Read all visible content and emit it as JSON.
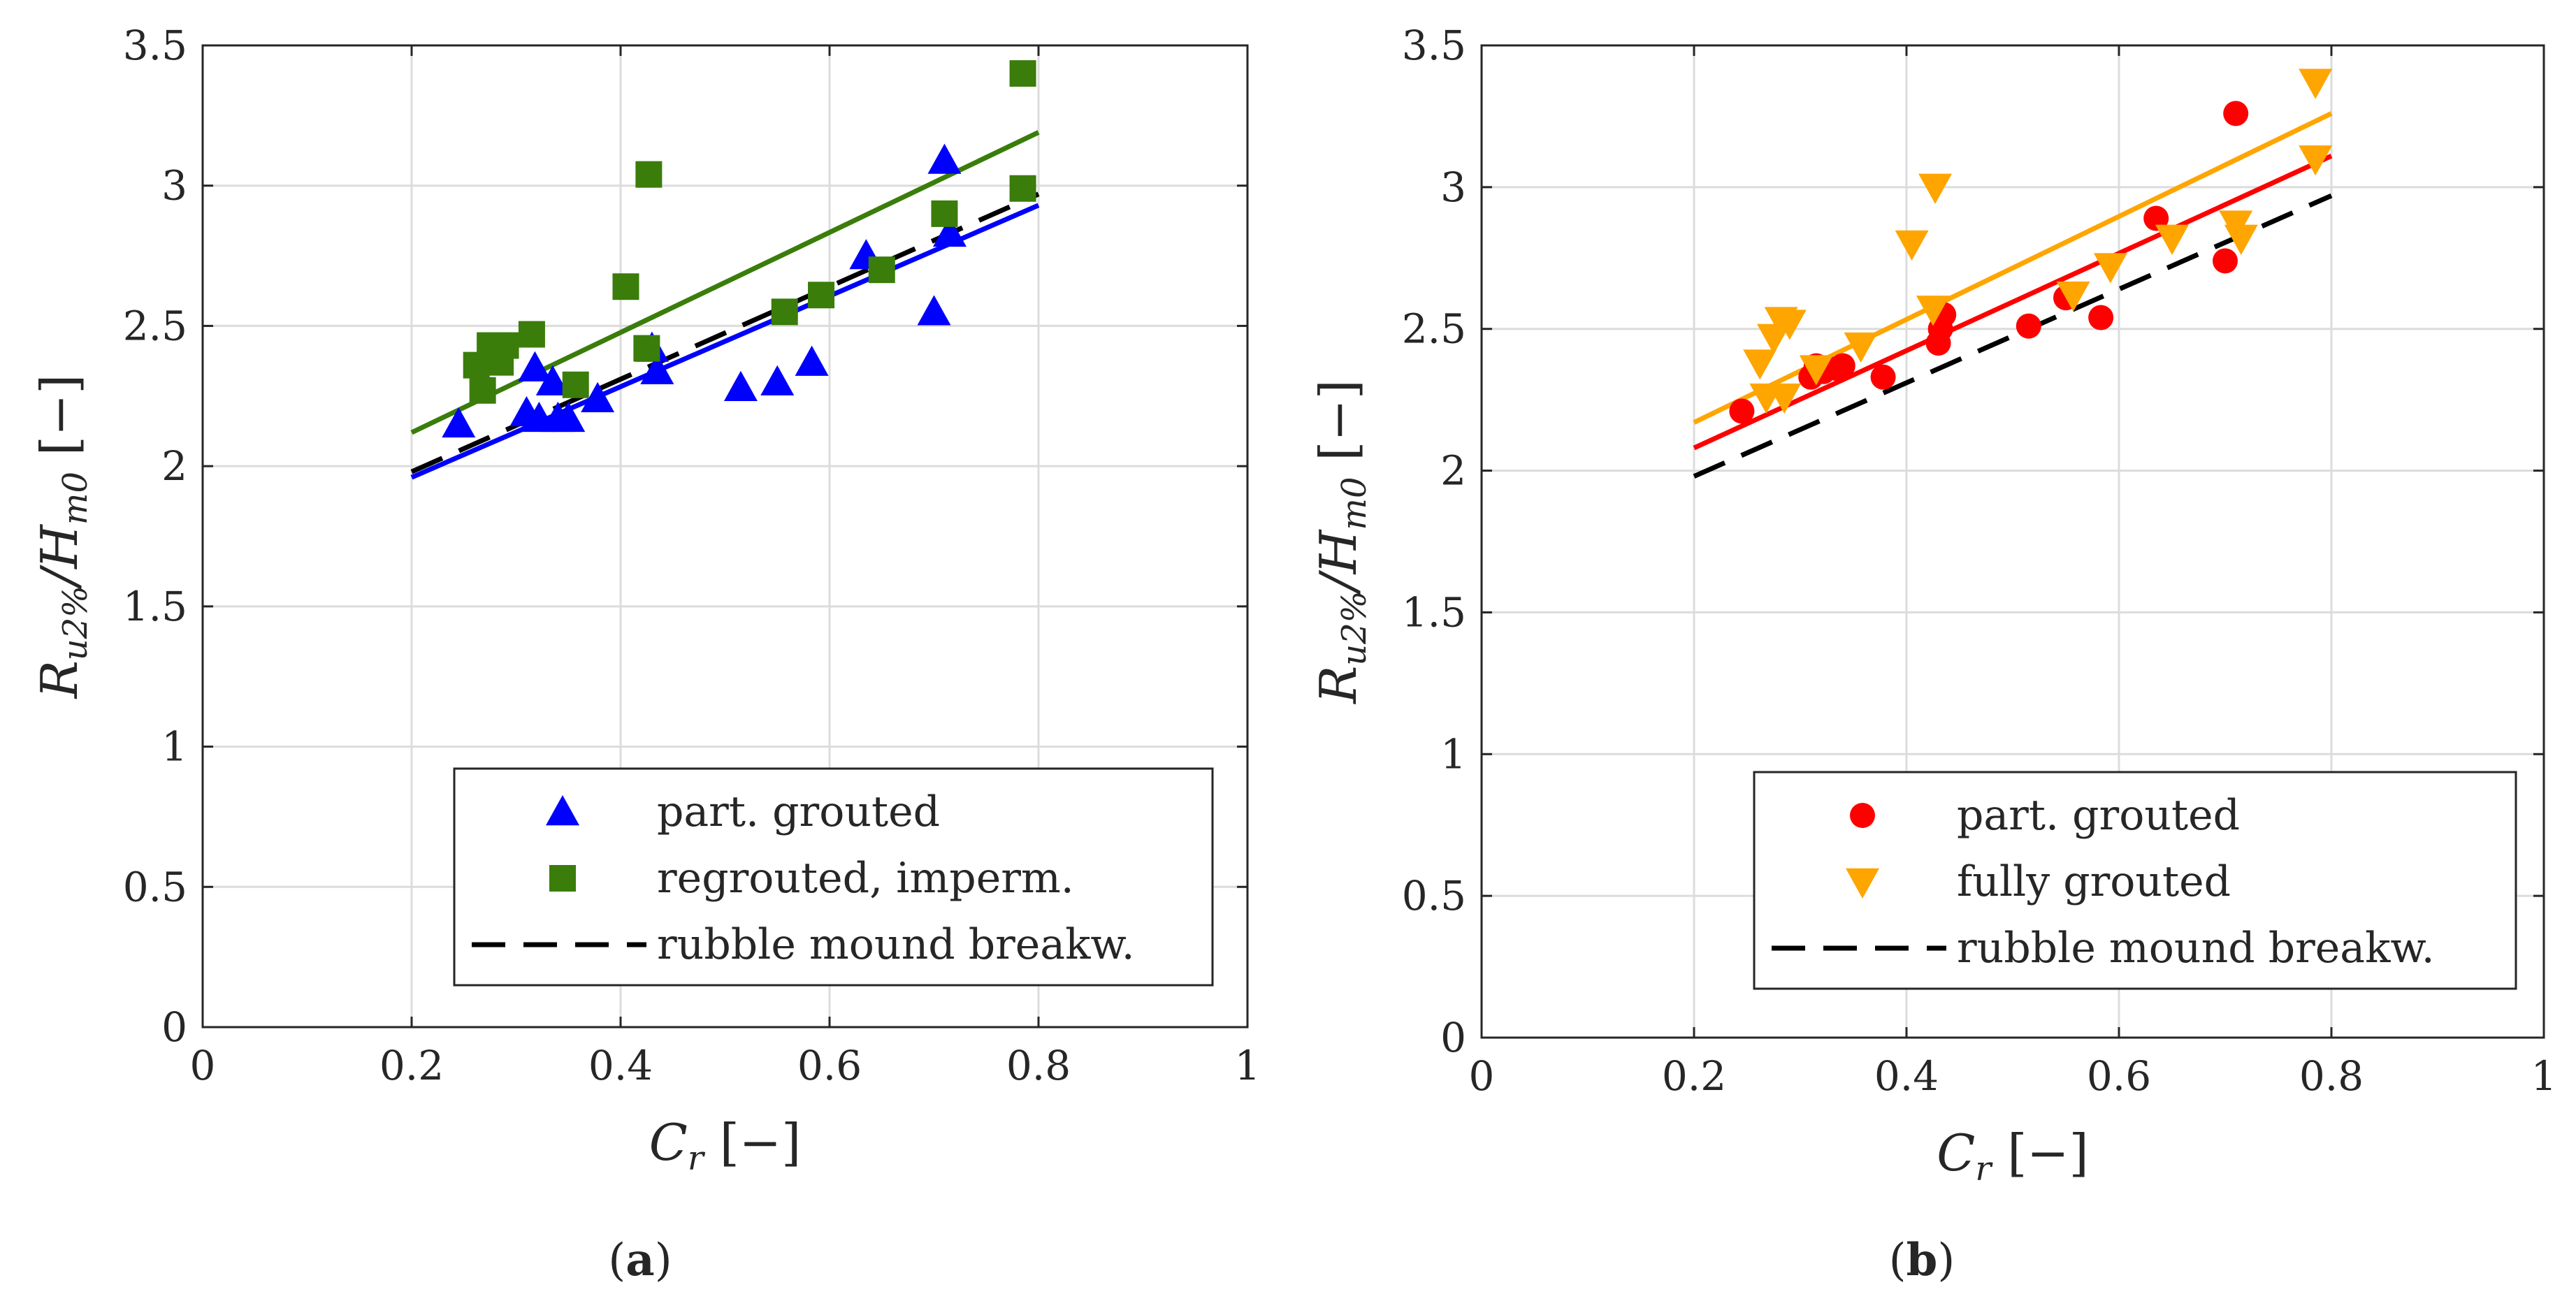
{
  "chart_data": [
    {
      "type": "scatter",
      "panel": "a",
      "caption": {
        "open": "(",
        "letter": "a",
        "close": ")"
      },
      "xlabel": {
        "main": "C",
        "sub": "r",
        "unit": "[−]"
      },
      "ylabel": {
        "main": "R",
        "sub": "u2%",
        "slash": "/",
        "main2": "H",
        "sub2": "m0",
        "unit": "[−]"
      },
      "xlim": [
        0,
        1
      ],
      "ylim": [
        0,
        3.5
      ],
      "xticks": [
        "0",
        "0.2",
        "0.4",
        "0.6",
        "0.8",
        "1"
      ],
      "xtick_values": [
        0,
        0.2,
        0.4,
        0.6,
        0.8,
        1
      ],
      "yticks": [
        "0",
        "0.5",
        "1",
        "1.5",
        "2",
        "2.5",
        "3",
        "3.5"
      ],
      "ytick_values": [
        0,
        0.5,
        1,
        1.5,
        2,
        2.5,
        3,
        3.5
      ],
      "grid": true,
      "legend_position": "bottom-right",
      "series": [
        {
          "name": "part. grouted",
          "marker": "triangle-up",
          "color": "#0000ff",
          "points": [
            [
              0.245,
              2.15
            ],
            [
              0.31,
              2.19
            ],
            [
              0.318,
              2.35
            ],
            [
              0.322,
              2.17
            ],
            [
              0.335,
              2.3
            ],
            [
              0.34,
              2.17
            ],
            [
              0.35,
              2.17
            ],
            [
              0.378,
              2.24
            ],
            [
              0.43,
              2.42
            ],
            [
              0.435,
              2.34
            ],
            [
              0.515,
              2.28
            ],
            [
              0.55,
              2.3
            ],
            [
              0.583,
              2.37
            ],
            [
              0.635,
              2.75
            ],
            [
              0.7,
              2.55
            ],
            [
              0.71,
              3.09
            ],
            [
              0.715,
              2.83
            ]
          ],
          "fit": [
            [
              0.2,
              1.96
            ],
            [
              0.8,
              2.93
            ]
          ]
        },
        {
          "name": "regrouted, imperm.",
          "marker": "square",
          "color": "#3a7d0a",
          "points": [
            [
              0.262,
              2.36
            ],
            [
              0.268,
              2.27
            ],
            [
              0.275,
              2.43
            ],
            [
              0.282,
              2.42
            ],
            [
              0.285,
              2.37
            ],
            [
              0.29,
              2.43
            ],
            [
              0.315,
              2.47
            ],
            [
              0.357,
              2.29
            ],
            [
              0.405,
              2.64
            ],
            [
              0.425,
              2.42
            ],
            [
              0.427,
              3.04
            ],
            [
              0.557,
              2.55
            ],
            [
              0.592,
              2.61
            ],
            [
              0.65,
              2.7
            ],
            [
              0.71,
              2.9
            ],
            [
              0.785,
              3.4
            ],
            [
              0.785,
              2.99
            ]
          ],
          "fit": [
            [
              0.2,
              2.12
            ],
            [
              0.8,
              3.19
            ]
          ]
        },
        {
          "name": "rubble mound breakw.",
          "style": "dashed",
          "color": "#000000",
          "fit": [
            [
              0.2,
              1.98
            ],
            [
              0.8,
              2.97
            ]
          ]
        }
      ]
    },
    {
      "type": "scatter",
      "panel": "b",
      "caption": {
        "open": "(",
        "letter": "b",
        "close": ")"
      },
      "xlabel": {
        "main": "C",
        "sub": "r",
        "unit": "[−]"
      },
      "ylabel": {
        "main": "R",
        "sub": "u2%",
        "slash": "/",
        "main2": "H",
        "sub2": "m0",
        "unit": "[−]"
      },
      "xlim": [
        0,
        1
      ],
      "ylim": [
        0,
        3.5
      ],
      "xticks": [
        "0",
        "0.2",
        "0.4",
        "0.6",
        "0.8",
        "1"
      ],
      "xtick_values": [
        0,
        0.2,
        0.4,
        0.6,
        0.8,
        1
      ],
      "yticks": [
        "0",
        "0.5",
        "1",
        "1.5",
        "2",
        "2.5",
        "3",
        "3.5"
      ],
      "ytick_values": [
        0,
        0.5,
        1,
        1.5,
        2,
        2.5,
        3,
        3.5
      ],
      "grid": true,
      "legend_position": "bottom-right",
      "series": [
        {
          "name": "part. grouted",
          "marker": "circle",
          "color": "#ff0000",
          "points": [
            [
              0.245,
              2.21
            ],
            [
              0.31,
              2.33
            ],
            [
              0.315,
              2.37
            ],
            [
              0.322,
              2.35
            ],
            [
              0.335,
              2.36
            ],
            [
              0.34,
              2.37
            ],
            [
              0.378,
              2.33
            ],
            [
              0.43,
              2.45
            ],
            [
              0.432,
              2.5
            ],
            [
              0.435,
              2.55
            ],
            [
              0.515,
              2.51
            ],
            [
              0.55,
              2.61
            ],
            [
              0.583,
              2.54
            ],
            [
              0.635,
              2.89
            ],
            [
              0.7,
              2.74
            ],
            [
              0.71,
              3.26
            ]
          ],
          "fit": [
            [
              0.2,
              2.08
            ],
            [
              0.8,
              3.11
            ]
          ]
        },
        {
          "name": "fully grouted",
          "marker": "triangle-down",
          "color": "#ffa500",
          "points": [
            [
              0.262,
              2.38
            ],
            [
              0.268,
              2.26
            ],
            [
              0.275,
              2.47
            ],
            [
              0.282,
              2.53
            ],
            [
              0.285,
              2.26
            ],
            [
              0.29,
              2.52
            ],
            [
              0.315,
              2.36
            ],
            [
              0.357,
              2.44
            ],
            [
              0.405,
              2.8
            ],
            [
              0.425,
              2.57
            ],
            [
              0.427,
              3.0
            ],
            [
              0.557,
              2.62
            ],
            [
              0.592,
              2.72
            ],
            [
              0.65,
              2.82
            ],
            [
              0.71,
              2.87
            ],
            [
              0.715,
              2.82
            ],
            [
              0.785,
              3.37
            ],
            [
              0.785,
              3.1
            ]
          ],
          "fit": [
            [
              0.2,
              2.17
            ],
            [
              0.8,
              3.26
            ]
          ]
        },
        {
          "name": "rubble mound breakw.",
          "style": "dashed",
          "color": "#000000",
          "fit": [
            [
              0.2,
              1.98
            ],
            [
              0.8,
              2.97
            ]
          ]
        }
      ]
    }
  ]
}
